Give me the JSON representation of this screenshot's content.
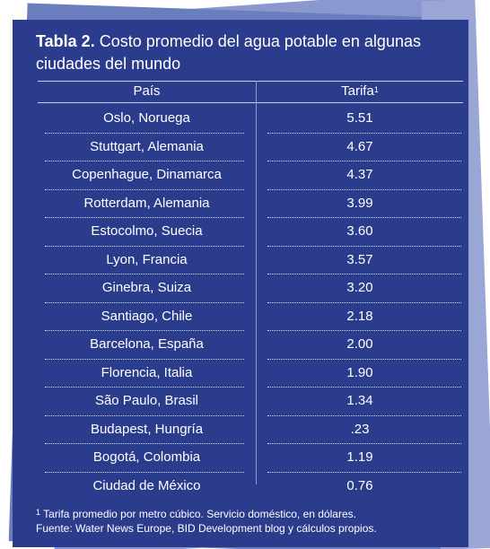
{
  "title": {
    "label": "Tabla 2.",
    "text": "Costo promedio del agua potable en algunas ciudades del mundo"
  },
  "table": {
    "header": [
      "País",
      {
        "text": "Tarifa",
        "sup": "1"
      }
    ],
    "rows": [
      [
        "Oslo, Noruega",
        "5.51"
      ],
      [
        "Stuttgart, Alemania",
        "4.67"
      ],
      [
        "Copenhague, Dinamarca",
        "4.37"
      ],
      [
        "Rotterdam, Alemania",
        "3.99"
      ],
      [
        "Estocolmo, Suecia",
        "3.60"
      ],
      [
        "Lyon, Francia",
        "3.57"
      ],
      [
        "Ginebra, Suiza",
        "3.20"
      ],
      [
        "Santiago, Chile",
        "2.18"
      ],
      [
        "Barcelona, España",
        "2.00"
      ],
      [
        "Florencia, Italia",
        "1.90"
      ],
      [
        "São Paulo, Brasil",
        "1.34"
      ],
      [
        "Budapest, Hungría",
        ".23"
      ],
      [
        "Bogotá, Colombia",
        "1.19"
      ],
      [
        "Ciudad de México",
        "0.76"
      ]
    ]
  },
  "footnotes": [
    {
      "marker": "1",
      "text": "Tarifa promedio por metro cúbico. Servicio doméstico, en dólares."
    },
    "Fuente: Water News Europe, BID Development blog y cálculos propios."
  ]
}
